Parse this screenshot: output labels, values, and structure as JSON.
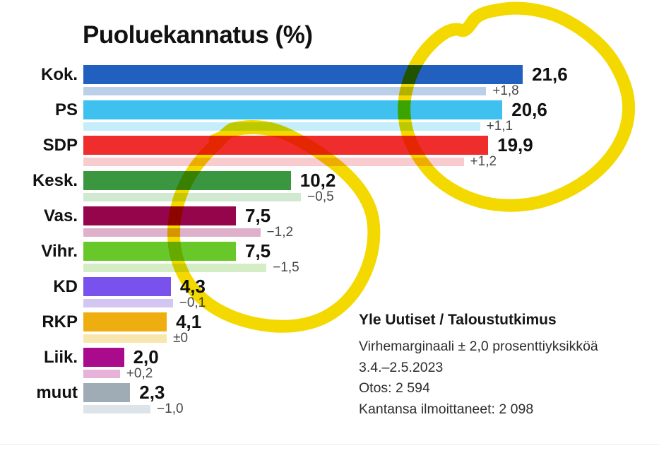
{
  "title": "Puoluekannatus (%)",
  "chart_data": {
    "type": "bar",
    "orientation": "horizontal",
    "title": "Puoluekannatus (%)",
    "categories": [
      "Kok.",
      "PS",
      "SDP",
      "Kesk.",
      "Vas.",
      "Vihr.",
      "KD",
      "RKP",
      "Liik.",
      "muut"
    ],
    "series": [
      {
        "name": "current_support_pct",
        "values": [
          21.6,
          20.6,
          19.9,
          10.2,
          7.5,
          7.5,
          4.3,
          4.1,
          2.0,
          2.3
        ]
      },
      {
        "name": "previous_support_pct",
        "values": [
          19.8,
          19.5,
          18.7,
          10.7,
          8.7,
          9.0,
          4.4,
          4.1,
          1.8,
          3.3
        ]
      }
    ],
    "value_labels": [
      "21,6",
      "20,6",
      "19,9",
      "10,2",
      "7,5",
      "7,5",
      "4,3",
      "4,1",
      "2,0",
      "2,3"
    ],
    "change_labels": [
      "+1,8",
      "+1,1",
      "+1,2",
      "−0,5",
      "−1,2",
      "−1,5",
      "−0,1",
      "±0",
      "+0,2",
      "−1,0"
    ],
    "bar_colors": [
      "#2160BE",
      "#3EC1EE",
      "#F02D2D",
      "#3A9740",
      "#95054B",
      "#69C829",
      "#7951EC",
      "#EFAE10",
      "#AA0A8C",
      "#A0ACB5"
    ],
    "prev_bar_colors": [
      "#BCCFE9",
      "#C6EDFA",
      "#F8CBCE",
      "#D1E9D0",
      "#DFB0C9",
      "#D5EDC5",
      "#D3C6F3",
      "#F8E6AF",
      "#E6B2D9",
      "#DDE4E9"
    ],
    "xlim": [
      0,
      28.3
    ],
    "grid": false,
    "legend": false,
    "axis_ticks_visible": false
  },
  "source": {
    "line1": "Yle Uutiset / Taloustutkimus",
    "line2": "Virhemarginaali ± 2,0 prosenttiyksikköä",
    "line3": "3.4.–2.5.2023",
    "line4": "Otos: 2 594",
    "line5": "Kantansa ilmoittaneet: 2 098"
  },
  "annotations": {
    "marker_color": "#F3D900",
    "items": [
      {
        "name": "hand-drawn-highlight-circle",
        "position": "top-right",
        "around": "Kok. / PS / SDP value labels"
      },
      {
        "name": "hand-drawn-highlight-circle",
        "position": "middle-left",
        "around": "Kesk. / Vas. / Vihr. bars"
      }
    ]
  }
}
